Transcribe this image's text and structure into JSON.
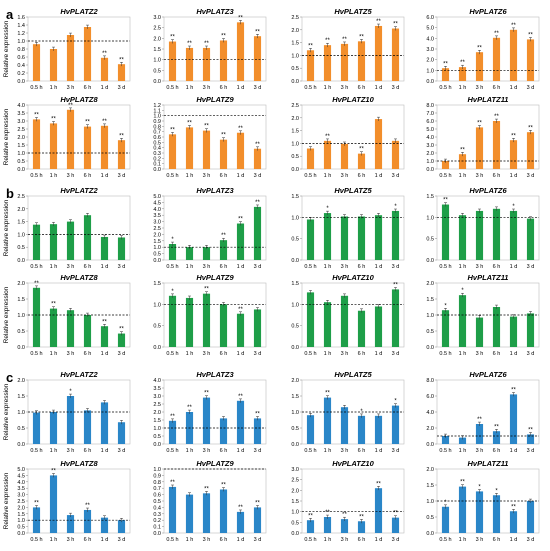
{
  "figure": {
    "xlabels": [
      "0.5 h",
      "1 h",
      "3 h",
      "6 h",
      "1 d",
      "3 d"
    ],
    "ylabel": "Relative expression",
    "colors": {
      "orange": "#f28e2b",
      "green": "#1e9e48",
      "blue": "#2a86c8"
    }
  },
  "chart_data": [
    {
      "panel": "a",
      "type": "bar",
      "color": "#f28e2b",
      "charts": [
        {
          "title": "HvPLATZ2",
          "categories": [
            "0.5 h",
            "1 h",
            "3 h",
            "6 h",
            "1 d",
            "3 d"
          ],
          "values": [
            0.92,
            0.8,
            1.15,
            1.35,
            0.58,
            0.42
          ],
          "significance": [
            "",
            "",
            "",
            "",
            "**",
            "**"
          ],
          "ylim": [
            0,
            1.6
          ],
          "yticks": [
            "0.0",
            "0.2",
            "0.4",
            "0.6",
            "0.8",
            "1.0",
            "1.2",
            "1.4",
            "1.6"
          ],
          "baseline": 1
        },
        {
          "title": "HvPLATZ3",
          "categories": [
            "0.5 h",
            "1 h",
            "3 h",
            "6 h",
            "1 d",
            "3 d"
          ],
          "values": [
            1.85,
            1.55,
            1.55,
            1.9,
            2.75,
            2.1
          ],
          "significance": [
            "**",
            "**",
            "**",
            "**",
            "**",
            "**"
          ],
          "ylim": [
            0,
            3.0
          ],
          "yticks": [
            "0.0",
            "0.5",
            "1.0",
            "1.5",
            "2.0",
            "2.5",
            "3.0"
          ],
          "baseline": 1
        },
        {
          "title": "HvPLATZ5",
          "categories": [
            "0.5 h",
            "1 h",
            "3 h",
            "6 h",
            "1 d",
            "3 d"
          ],
          "values": [
            1.2,
            1.4,
            1.45,
            1.55,
            2.15,
            2.05
          ],
          "significance": [
            "**",
            "**",
            "**",
            "**",
            "**",
            "**"
          ],
          "ylim": [
            0,
            2.5
          ],
          "yticks": [
            "0.0",
            "0.5",
            "1.0",
            "1.5",
            "2.0",
            "2.5"
          ],
          "baseline": 1
        },
        {
          "title": "HvPLATZ6",
          "categories": [
            "0.5 h",
            "1 h",
            "3 h",
            "6 h",
            "1 d",
            "3 d"
          ],
          "values": [
            1.2,
            1.3,
            2.7,
            4.05,
            4.8,
            3.9
          ],
          "significance": [
            "**",
            "**",
            "**",
            "**",
            "**",
            "**"
          ],
          "ylim": [
            0,
            6.0
          ],
          "yticks": [
            "0.0",
            "1.0",
            "2.0",
            "3.0",
            "4.0",
            "5.0",
            "6.0"
          ],
          "baseline": 1
        },
        {
          "title": "HvPLATZ8",
          "categories": [
            "0.5 h",
            "1 h",
            "3 h",
            "6 h",
            "1 d",
            "3 d"
          ],
          "values": [
            3.1,
            2.85,
            3.7,
            2.65,
            2.7,
            1.8
          ],
          "significance": [
            "**",
            "**",
            "**",
            "**",
            "**",
            "**"
          ],
          "ylim": [
            0,
            4.0
          ],
          "yticks": [
            "0.0",
            "0.5",
            "1.0",
            "1.5",
            "2.0",
            "2.5",
            "3.0",
            "3.5",
            "4.0"
          ],
          "baseline": 1
        },
        {
          "title": "HvPLATZ9",
          "categories": [
            "0.5 h",
            "1 h",
            "3 h",
            "6 h",
            "1 d",
            "3 d"
          ],
          "values": [
            0.65,
            0.78,
            0.72,
            0.55,
            0.68,
            0.38
          ],
          "significance": [
            "**",
            "**",
            "**",
            "**",
            "**",
            "**"
          ],
          "ylim": [
            0,
            1.2
          ],
          "yticks": [
            "0.0",
            "0.1",
            "0.2",
            "0.3",
            "0.4",
            "0.5",
            "0.6",
            "0.7",
            "0.8",
            "0.9",
            "1.0",
            "1.1",
            "1.2"
          ],
          "baseline": 1
        },
        {
          "title": "HvPLATZ10",
          "categories": [
            "0.5 h",
            "1 h",
            "3 h",
            "6 h",
            "1 d",
            "3 d"
          ],
          "values": [
            0.8,
            1.1,
            0.98,
            0.6,
            1.95,
            1.1
          ],
          "significance": [
            "",
            "**",
            "",
            "**",
            "",
            ""
          ],
          "ylim": [
            0,
            2.5
          ],
          "yticks": [
            "0.0",
            "0.5",
            "1.0",
            "1.5",
            "2.0",
            "2.5"
          ],
          "baseline": 1
        },
        {
          "title": "HvPLATZ11",
          "categories": [
            "0.5 h",
            "1 h",
            "3 h",
            "6 h",
            "1 d",
            "3 d"
          ],
          "values": [
            1.0,
            1.85,
            5.2,
            6.0,
            3.6,
            4.6
          ],
          "significance": [
            "",
            "**",
            "**",
            "**",
            "**",
            "**"
          ],
          "ylim": [
            0,
            8.0
          ],
          "yticks": [
            "0.0",
            "1.0",
            "2.0",
            "3.0",
            "4.0",
            "5.0",
            "6.0",
            "7.0",
            "8.0"
          ],
          "baseline": 1
        }
      ]
    },
    {
      "panel": "b",
      "type": "bar",
      "color": "#1e9e48",
      "charts": [
        {
          "title": "HvPLATZ2",
          "categories": [
            "0.5 h",
            "1 h",
            "3 h",
            "6 h",
            "1 d",
            "3 d"
          ],
          "values": [
            1.38,
            1.4,
            1.5,
            1.75,
            0.9,
            0.88
          ],
          "significance": [
            "",
            "",
            "",
            "",
            "",
            ""
          ],
          "ylim": [
            0,
            2.5
          ],
          "yticks": [
            "0.0",
            "0.5",
            "1.0",
            "1.5",
            "2.0",
            "2.5"
          ],
          "baseline": 1
        },
        {
          "title": "HvPLATZ3",
          "categories": [
            "0.5 h",
            "1 h",
            "3 h",
            "6 h",
            "1 d",
            "3 d"
          ],
          "values": [
            1.25,
            1.0,
            1.0,
            1.55,
            2.85,
            4.15
          ],
          "significance": [
            "*",
            "",
            "",
            "**",
            "**",
            "**"
          ],
          "ylim": [
            0,
            5.0
          ],
          "yticks": [
            "0.0",
            "0.5",
            "1.0",
            "1.5",
            "2.0",
            "2.5",
            "3.0",
            "3.5",
            "4.0",
            "4.5",
            "5.0"
          ],
          "baseline": 1
        },
        {
          "title": "HvPLATZ5",
          "categories": [
            "0.5 h",
            "1 h",
            "3 h",
            "6 h",
            "1 d",
            "3 d"
          ],
          "values": [
            0.95,
            1.1,
            1.02,
            1.02,
            1.05,
            1.15
          ],
          "significance": [
            "",
            "*",
            "",
            "",
            "",
            "*"
          ],
          "ylim": [
            0,
            1.5
          ],
          "yticks": [
            "0.0",
            "0.5",
            "1.0",
            "1.5"
          ],
          "baseline": 1
        },
        {
          "title": "HvPLATZ6",
          "categories": [
            "0.5 h",
            "1 h",
            "3 h",
            "6 h",
            "1 d",
            "3 d"
          ],
          "values": [
            1.3,
            1.05,
            1.15,
            1.2,
            1.15,
            0.97
          ],
          "significance": [
            "**",
            "",
            "",
            "",
            "*",
            ""
          ],
          "ylim": [
            0,
            1.5
          ],
          "yticks": [
            "0.0",
            "0.5",
            "1.0",
            "1.5"
          ],
          "baseline": 1
        },
        {
          "title": "HvPLATZ8",
          "categories": [
            "0.5 h",
            "1 h",
            "3 h",
            "6 h",
            "1 d",
            "3 d"
          ],
          "values": [
            1.85,
            1.2,
            1.15,
            1.0,
            0.65,
            0.42
          ],
          "significance": [
            "**",
            "**",
            "",
            "",
            "**",
            "**"
          ],
          "ylim": [
            0,
            2.0
          ],
          "yticks": [
            "0.0",
            "0.5",
            "1.0",
            "1.5",
            "2.0"
          ],
          "baseline": 1
        },
        {
          "title": "HvPLATZ9",
          "categories": [
            "0.5 h",
            "1 h",
            "3 h",
            "6 h",
            "1 d",
            "3 d"
          ],
          "values": [
            1.2,
            1.15,
            1.25,
            1.0,
            0.78,
            0.88
          ],
          "significance": [
            "*",
            "",
            "**",
            "",
            "**",
            ""
          ],
          "ylim": [
            0,
            1.5
          ],
          "yticks": [
            "0.0",
            "0.5",
            "1.0",
            "1.5"
          ],
          "baseline": 1
        },
        {
          "title": "HvPLATZ10",
          "categories": [
            "0.5 h",
            "1 h",
            "3 h",
            "6 h",
            "1 d",
            "3 d"
          ],
          "values": [
            1.28,
            1.05,
            1.2,
            0.85,
            0.95,
            1.35
          ],
          "significance": [
            "",
            "",
            "",
            "",
            "",
            "**"
          ],
          "ylim": [
            0,
            1.5
          ],
          "yticks": [
            "0.0",
            "0.5",
            "1.0",
            "1.5"
          ],
          "baseline": 1
        },
        {
          "title": "HvPLATZ11",
          "categories": [
            "0.5 h",
            "1 h",
            "3 h",
            "6 h",
            "1 d",
            "3 d"
          ],
          "values": [
            1.15,
            1.62,
            0.92,
            1.25,
            0.95,
            1.05
          ],
          "significance": [
            "*",
            "*",
            "",
            "",
            "",
            ""
          ],
          "ylim": [
            0,
            2.0
          ],
          "yticks": [
            "0.0",
            "0.5",
            "1.0",
            "1.5",
            "2.0"
          ],
          "baseline": 1
        }
      ]
    },
    {
      "panel": "c",
      "type": "bar",
      "color": "#2a86c8",
      "charts": [
        {
          "title": "HvPLATZ2",
          "categories": [
            "0.5 h",
            "1 h",
            "3 h",
            "6 h",
            "1 d",
            "3 d"
          ],
          "values": [
            0.98,
            1.0,
            1.5,
            1.05,
            1.3,
            0.68
          ],
          "significance": [
            "",
            "",
            "*",
            "",
            "",
            ""
          ],
          "ylim": [
            0,
            2.0
          ],
          "yticks": [
            "0.0",
            "0.5",
            "1.0",
            "1.5",
            "2.0"
          ],
          "baseline": 1
        },
        {
          "title": "HvPLATZ3",
          "categories": [
            "0.5 h",
            "1 h",
            "3 h",
            "6 h",
            "1 d",
            "3 d"
          ],
          "values": [
            1.45,
            2.0,
            2.9,
            1.6,
            2.7,
            1.6
          ],
          "significance": [
            "**",
            "**",
            "**",
            "",
            "**",
            "**"
          ],
          "ylim": [
            0,
            4.0
          ],
          "yticks": [
            "0.0",
            "0.5",
            "1.0",
            "1.5",
            "2.0",
            "2.5",
            "3.0",
            "3.5",
            "4.0"
          ],
          "baseline": 1
        },
        {
          "title": "HvPLATZ5",
          "categories": [
            "0.5 h",
            "1 h",
            "3 h",
            "6 h",
            "1 d",
            "3 d"
          ],
          "values": [
            0.9,
            1.45,
            1.15,
            0.88,
            0.88,
            1.2
          ],
          "significance": [
            "",
            "**",
            "",
            "*",
            "",
            "*"
          ],
          "ylim": [
            0,
            2.0
          ],
          "yticks": [
            "0.0",
            "0.5",
            "1.0",
            "1.5",
            "2.0"
          ],
          "baseline": 1
        },
        {
          "title": "HvPLATZ6",
          "categories": [
            "0.5 h",
            "1 h",
            "3 h",
            "6 h",
            "1 d",
            "3 d"
          ],
          "values": [
            1.0,
            0.8,
            2.5,
            1.6,
            6.2,
            1.2
          ],
          "significance": [
            "",
            "",
            "**",
            "**",
            "**",
            "**"
          ],
          "ylim": [
            0,
            8.0
          ],
          "yticks": [
            "0.0",
            "2.0",
            "4.0",
            "6.0",
            "8.0"
          ],
          "baseline": 1
        },
        {
          "title": "HvPLATZ8",
          "categories": [
            "0.5 h",
            "1 h",
            "3 h",
            "6 h",
            "1 d",
            "3 d"
          ],
          "values": [
            2.0,
            4.5,
            1.4,
            1.8,
            1.2,
            1.0
          ],
          "significance": [
            "**",
            "**",
            "",
            "**",
            "",
            ""
          ],
          "ylim": [
            0,
            5.0
          ],
          "yticks": [
            "0.0",
            "0.5",
            "1.0",
            "1.5",
            "2.0",
            "2.5",
            "3.0",
            "3.5",
            "4.0",
            "4.5",
            "5.0"
          ],
          "baseline": 1
        },
        {
          "title": "HvPLATZ9",
          "categories": [
            "0.5 h",
            "1 h",
            "3 h",
            "6 h",
            "1 d",
            "3 d"
          ],
          "values": [
            0.72,
            0.6,
            0.62,
            0.68,
            0.33,
            0.4
          ],
          "significance": [
            "**",
            "",
            "**",
            "**",
            "**",
            "**"
          ],
          "ylim": [
            0,
            1.0
          ],
          "yticks": [
            "0.0",
            "0.1",
            "0.2",
            "0.3",
            "0.4",
            "0.5",
            "0.6",
            "0.7",
            "0.8",
            "0.9",
            "1.0"
          ],
          "baseline": 1
        },
        {
          "title": "HvPLATZ10",
          "categories": [
            "0.5 h",
            "1 h",
            "3 h",
            "6 h",
            "1 d",
            "3 d"
          ],
          "values": [
            0.6,
            0.75,
            0.65,
            0.55,
            2.1,
            0.72
          ],
          "significance": [
            "**",
            "**",
            "**",
            "**",
            "**",
            "**"
          ],
          "ylim": [
            0,
            3.0
          ],
          "yticks": [
            "0.0",
            "0.5",
            "1.0",
            "1.5",
            "2.0",
            "2.5",
            "3.0"
          ],
          "baseline": 1
        },
        {
          "title": "HvPLATZ11",
          "categories": [
            "0.5 h",
            "1 h",
            "3 h",
            "6 h",
            "1 d",
            "3 d"
          ],
          "values": [
            0.82,
            1.45,
            1.3,
            1.18,
            0.68,
            1.0
          ],
          "significance": [
            "*",
            "**",
            "*",
            "*",
            "**",
            ""
          ],
          "ylim": [
            0,
            2.0
          ],
          "yticks": [
            "0.0",
            "0.5",
            "1.0",
            "1.5",
            "2.0"
          ],
          "baseline": 1
        }
      ]
    }
  ]
}
